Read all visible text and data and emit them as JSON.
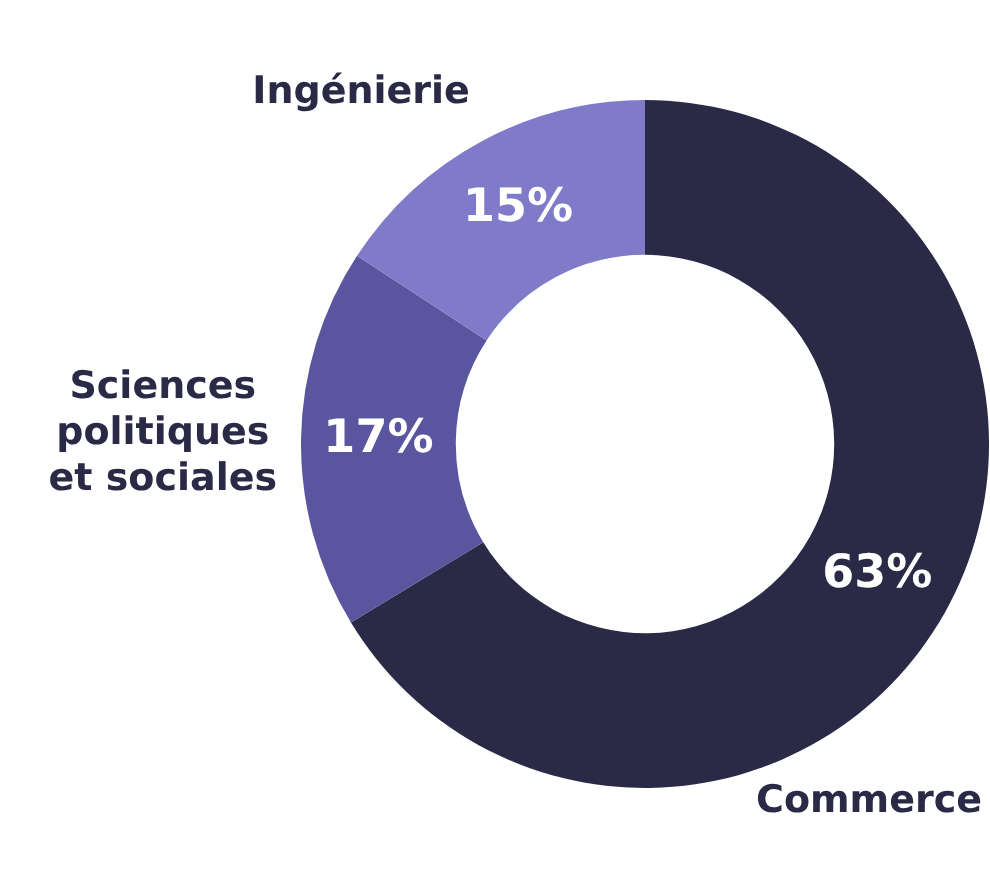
{
  "chart_data": {
    "type": "donut",
    "categories": [
      "Commerce",
      "Sciences politiques et sociales",
      "Ingénierie"
    ],
    "values": [
      63,
      17,
      15
    ],
    "colors": [
      "#2a2946",
      "#5a559f",
      "#7f7bc9"
    ],
    "value_labels": [
      "63%",
      "17%",
      "15%"
    ],
    "legend": false
  }
}
